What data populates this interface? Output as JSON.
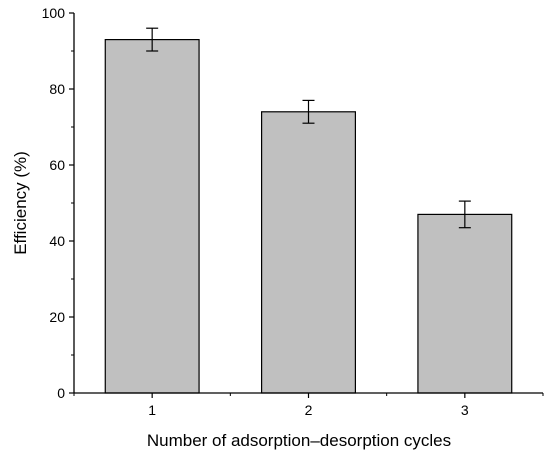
{
  "chart_data": {
    "type": "bar",
    "title": "",
    "xlabel": "Number of adsorption–desorption cycles",
    "ylabel": "Efficiency (%)",
    "categories": [
      "1",
      "2",
      "3"
    ],
    "values": [
      93,
      74,
      47
    ],
    "errors": [
      3,
      3,
      3.5
    ],
    "ylim": [
      0,
      100
    ],
    "yticks": [
      "0",
      "20",
      "40",
      "60",
      "80",
      "100"
    ],
    "grid": false,
    "legend": "none",
    "colors": {
      "bar_fill": "#c0c0c0",
      "bar_stroke": "#000000",
      "axis": "#000000"
    }
  }
}
